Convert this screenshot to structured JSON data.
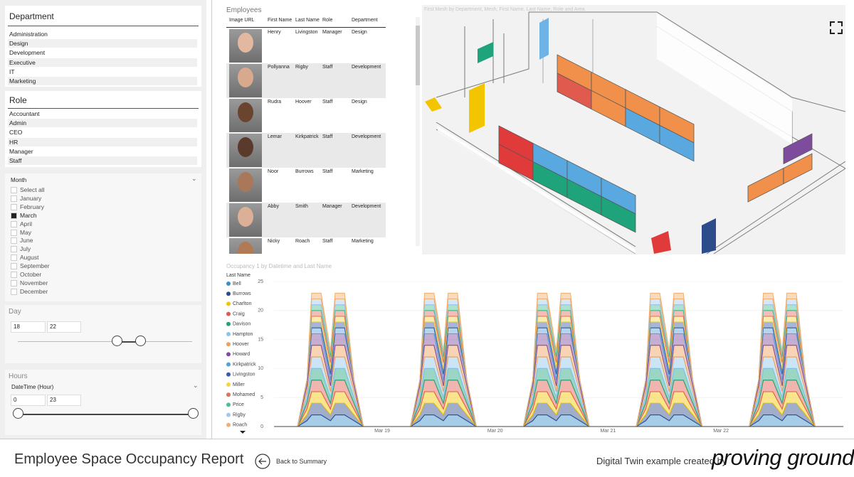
{
  "slicers": {
    "department": {
      "title": "Department",
      "items": [
        "Administration",
        "Design",
        "Development",
        "Executive",
        "IT",
        "Marketing"
      ]
    },
    "role": {
      "title": "Role",
      "items": [
        "Accountant",
        "Admin",
        "CEO",
        "HR",
        "Manager",
        "Staff"
      ]
    },
    "month": {
      "title": "Month",
      "items": [
        {
          "label": "Select all",
          "checked": false
        },
        {
          "label": "January",
          "checked": false
        },
        {
          "label": "February",
          "checked": false
        },
        {
          "label": "March",
          "checked": true
        },
        {
          "label": "April",
          "checked": false
        },
        {
          "label": "May",
          "checked": false
        },
        {
          "label": "June",
          "checked": false
        },
        {
          "label": "July",
          "checked": false
        },
        {
          "label": "August",
          "checked": false
        },
        {
          "label": "September",
          "checked": false
        },
        {
          "label": "October",
          "checked": false
        },
        {
          "label": "November",
          "checked": false
        },
        {
          "label": "December",
          "checked": false
        }
      ]
    },
    "day": {
      "title": "Day",
      "from": 18,
      "to": 22
    },
    "hours": {
      "title": "Hours",
      "field": "DateTime (Hour)",
      "from": 0,
      "to": 23
    }
  },
  "employees": {
    "title": "Employees",
    "columns": [
      "Image URL",
      "First Name",
      "Last Name",
      "Role",
      "Department"
    ],
    "rows": [
      [
        "Henry",
        "Livingston",
        "Manager",
        "Design"
      ],
      [
        "Pollyanna",
        "Rigby",
        "Staff",
        "Development"
      ],
      [
        "Rudra",
        "Hoover",
        "Staff",
        "Design"
      ],
      [
        "Lemar",
        "Kirkpatrick",
        "Staff",
        "Development"
      ],
      [
        "Noor",
        "Burrows",
        "Staff",
        "Marketing"
      ],
      [
        "Abby",
        "Smith",
        "Manager",
        "Development"
      ],
      [
        "Nicky",
        "Roach",
        "Staff",
        "Marketing"
      ]
    ]
  },
  "mesh": {
    "title": "First Mesh by Department, Mesh, First Name, Last Name, Role and Area"
  },
  "chart_data": {
    "type": "area",
    "stacked": true,
    "title": "Occupancy 1 by Datetime and Last Name",
    "legend_title": "Last Name",
    "x": [
      6,
      8,
      9,
      11,
      13,
      14,
      16,
      18,
      20,
      30,
      32,
      33,
      35,
      37,
      38,
      40,
      42,
      44,
      54,
      56,
      57,
      59,
      61,
      62,
      64,
      66,
      68,
      78,
      80,
      81,
      83,
      85,
      86,
      88,
      90,
      92,
      102,
      104,
      105,
      107,
      109,
      110,
      112,
      114,
      116
    ],
    "xlim": [
      1,
      122
    ],
    "xticks": [
      {
        "value": 24,
        "label": "Mar 19"
      },
      {
        "value": 48,
        "label": "Mar 20"
      },
      {
        "value": 72,
        "label": "Mar 21"
      },
      {
        "value": 96,
        "label": "Mar 22"
      }
    ],
    "ylim": [
      0,
      25
    ],
    "yticks": [
      0,
      5,
      10,
      15,
      20,
      25
    ],
    "series": [
      {
        "name": "Bell",
        "color": "#3a8fc9",
        "values": [
          0,
          1,
          2,
          2,
          1,
          2,
          2,
          1,
          0,
          0,
          1,
          2,
          2,
          1,
          2,
          2,
          1,
          0,
          0,
          1,
          2,
          2,
          1,
          2,
          2,
          1,
          0,
          0,
          1,
          2,
          2,
          1,
          2,
          2,
          1,
          0,
          0,
          1,
          2,
          2,
          1,
          2,
          2,
          1,
          0
        ]
      },
      {
        "name": "Burrows",
        "color": "#2d4c8c",
        "values": [
          0,
          1,
          2,
          2,
          1,
          2,
          2,
          1,
          0,
          0,
          1,
          2,
          2,
          1,
          2,
          2,
          1,
          0,
          0,
          1,
          2,
          2,
          1,
          2,
          2,
          1,
          0,
          0,
          1,
          2,
          2,
          1,
          2,
          2,
          1,
          0,
          0,
          1,
          2,
          2,
          1,
          2,
          2,
          1,
          0
        ]
      },
      {
        "name": "Charlton",
        "color": "#f2c500",
        "values": [
          0,
          1,
          2,
          2,
          1,
          2,
          2,
          1,
          0,
          0,
          1,
          2,
          2,
          1,
          2,
          2,
          1,
          0,
          0,
          1,
          2,
          2,
          1,
          2,
          2,
          1,
          0,
          0,
          1,
          2,
          2,
          1,
          2,
          2,
          1,
          0,
          0,
          1,
          2,
          2,
          1,
          2,
          2,
          1,
          0
        ]
      },
      {
        "name": "Craig",
        "color": "#e05a4d",
        "values": [
          0,
          1,
          2,
          2,
          1,
          2,
          2,
          1,
          0,
          0,
          1,
          2,
          2,
          1,
          2,
          2,
          1,
          0,
          0,
          1,
          2,
          2,
          1,
          2,
          2,
          1,
          0,
          0,
          1,
          2,
          2,
          1,
          2,
          2,
          1,
          0,
          0,
          1,
          2,
          2,
          1,
          2,
          2,
          1,
          0
        ]
      },
      {
        "name": "Davison",
        "color": "#1fa37a",
        "values": [
          0,
          1,
          2,
          2,
          1,
          2,
          2,
          1,
          0,
          0,
          1,
          2,
          2,
          1,
          2,
          2,
          1,
          0,
          0,
          1,
          2,
          2,
          1,
          2,
          2,
          1,
          0,
          0,
          1,
          2,
          2,
          1,
          2,
          2,
          1,
          0,
          0,
          1,
          2,
          2,
          1,
          2,
          2,
          1,
          0
        ]
      },
      {
        "name": "Hampton",
        "color": "#8cc4ec",
        "values": [
          0,
          1,
          2,
          2,
          1,
          2,
          2,
          1,
          0,
          0,
          1,
          2,
          2,
          1,
          2,
          2,
          1,
          0,
          0,
          1,
          2,
          2,
          1,
          2,
          2,
          1,
          0,
          0,
          1,
          2,
          2,
          1,
          2,
          2,
          1,
          0,
          0,
          1,
          2,
          2,
          1,
          2,
          2,
          1,
          0
        ]
      },
      {
        "name": "Hoover",
        "color": "#f0a05a",
        "values": [
          0,
          1,
          2,
          2,
          1,
          2,
          2,
          1,
          0,
          0,
          1,
          2,
          2,
          1,
          2,
          2,
          1,
          0,
          0,
          1,
          2,
          2,
          1,
          2,
          2,
          1,
          0,
          0,
          1,
          2,
          2,
          1,
          2,
          2,
          1,
          0,
          0,
          1,
          2,
          2,
          1,
          2,
          2,
          1,
          0
        ]
      },
      {
        "name": "Howard",
        "color": "#7e4c9c",
        "values": [
          0,
          1,
          2,
          2,
          1,
          2,
          2,
          1,
          0,
          0,
          1,
          2,
          2,
          1,
          2,
          2,
          1,
          0,
          0,
          1,
          2,
          2,
          1,
          2,
          2,
          1,
          0,
          0,
          1,
          2,
          2,
          1,
          2,
          2,
          1,
          0,
          0,
          1,
          2,
          2,
          1,
          2,
          2,
          1,
          0
        ]
      },
      {
        "name": "Kirkpatrick",
        "color": "#5aa0d8",
        "values": [
          0,
          0,
          1,
          1,
          1,
          1,
          1,
          0,
          0,
          0,
          0,
          1,
          1,
          1,
          1,
          1,
          0,
          0,
          0,
          0,
          1,
          1,
          1,
          1,
          1,
          0,
          0,
          0,
          0,
          1,
          1,
          1,
          1,
          1,
          0,
          0,
          0,
          0,
          1,
          1,
          1,
          1,
          1,
          0,
          0
        ]
      },
      {
        "name": "Livingston",
        "color": "#3c5aa6",
        "values": [
          0,
          0,
          1,
          1,
          1,
          1,
          1,
          0,
          0,
          0,
          0,
          1,
          1,
          1,
          1,
          1,
          0,
          0,
          0,
          0,
          1,
          1,
          1,
          1,
          1,
          0,
          0,
          0,
          0,
          1,
          1,
          1,
          1,
          1,
          0,
          0,
          0,
          0,
          1,
          1,
          1,
          1,
          1,
          0,
          0
        ]
      },
      {
        "name": "Miller",
        "color": "#f5d547",
        "values": [
          0,
          0,
          1,
          1,
          1,
          1,
          1,
          0,
          0,
          0,
          0,
          1,
          1,
          1,
          1,
          1,
          0,
          0,
          0,
          0,
          1,
          1,
          1,
          1,
          1,
          0,
          0,
          0,
          0,
          1,
          1,
          1,
          1,
          1,
          0,
          0,
          0,
          0,
          1,
          1,
          1,
          1,
          1,
          0,
          0
        ]
      },
      {
        "name": "Mohamed",
        "color": "#e07060",
        "values": [
          0,
          0,
          1,
          1,
          1,
          1,
          1,
          0,
          0,
          0,
          0,
          1,
          1,
          1,
          1,
          1,
          0,
          0,
          0,
          0,
          1,
          1,
          1,
          1,
          1,
          0,
          0,
          0,
          0,
          1,
          1,
          1,
          1,
          1,
          0,
          0,
          0,
          0,
          1,
          1,
          1,
          1,
          1,
          0,
          0
        ]
      },
      {
        "name": "Price",
        "color": "#4bbf94",
        "values": [
          0,
          0,
          1,
          1,
          1,
          1,
          1,
          0,
          0,
          0,
          0,
          1,
          1,
          1,
          1,
          1,
          0,
          0,
          0,
          0,
          1,
          1,
          1,
          1,
          1,
          0,
          0,
          0,
          0,
          1,
          1,
          1,
          1,
          1,
          0,
          0,
          0,
          0,
          1,
          1,
          1,
          1,
          1,
          0,
          0
        ]
      },
      {
        "name": "Rigby",
        "color": "#a4c8ec",
        "values": [
          0,
          0,
          1,
          1,
          0,
          1,
          1,
          0,
          0,
          0,
          0,
          1,
          1,
          0,
          1,
          1,
          0,
          0,
          0,
          0,
          1,
          1,
          0,
          1,
          1,
          0,
          0,
          0,
          0,
          1,
          1,
          0,
          1,
          1,
          0,
          0,
          0,
          0,
          1,
          1,
          0,
          1,
          1,
          0,
          0
        ]
      },
      {
        "name": "Roach",
        "color": "#f0b070",
        "values": [
          0,
          0,
          1,
          1,
          0,
          1,
          1,
          0,
          0,
          0,
          0,
          1,
          1,
          0,
          1,
          1,
          0,
          0,
          0,
          0,
          1,
          1,
          0,
          1,
          1,
          0,
          0,
          0,
          0,
          1,
          1,
          0,
          1,
          1,
          0,
          0,
          0,
          0,
          1,
          1,
          0,
          1,
          1,
          0,
          0
        ]
      }
    ]
  },
  "footer": {
    "report_title": "Employee Space Occupancy Report",
    "back_button": "Back to Summary",
    "credit": "Digital Twin example created by",
    "brand": "proving ground"
  }
}
